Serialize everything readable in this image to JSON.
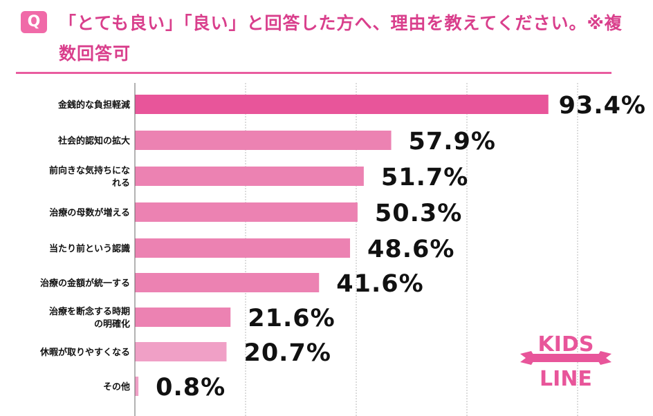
{
  "header": {
    "q_label": "Q",
    "title": "「とても良い」「良い」と回答した方へ、理由を教えてください。※複数回答可"
  },
  "logo": {
    "line1": "KIDS",
    "line2": "LINE"
  },
  "colors": {
    "accent": "#e95c9f",
    "bar_top": "#e8559a",
    "bar": "#ec82b2",
    "bar_light": "#f0a0c6",
    "title": "#d93f8c"
  },
  "chart_data": {
    "type": "bar",
    "orientation": "horizontal",
    "title": "「とても良い」「良い」と回答した方へ、理由を教えてください。※複数回答可",
    "xlabel": "",
    "ylabel": "",
    "xlim": [
      0,
      100
    ],
    "grid": true,
    "unit": "%",
    "categories": [
      "金銭的な負担軽減",
      "社会的認知の拡大",
      "前向きな気持ちになれる",
      "治療の母数が増える",
      "当たり前という認識",
      "治療の金額が統一する",
      "治療を断念する時期の明確化",
      "休暇が取りやすくなる",
      "その他"
    ],
    "label_lines": [
      [
        "金銭的な負担軽減"
      ],
      [
        "社会的認知の拡大"
      ],
      [
        "前向きな気持ちにな",
        "れる"
      ],
      [
        "治療の母数が増える"
      ],
      [
        "当たり前という認識"
      ],
      [
        "治療の金額が統一する"
      ],
      [
        "治療を断念する時期",
        "の明確化"
      ],
      [
        "休暇が取りやすくなる"
      ],
      [
        "その他"
      ]
    ],
    "values": [
      93.4,
      57.9,
      51.7,
      50.3,
      48.6,
      41.6,
      21.6,
      20.7,
      0.8
    ],
    "value_labels": [
      "93.4%",
      "57.9%",
      "51.7%",
      "50.3%",
      "48.6%",
      "41.6%",
      "21.6%",
      "20.7%",
      "0.8%"
    ]
  }
}
